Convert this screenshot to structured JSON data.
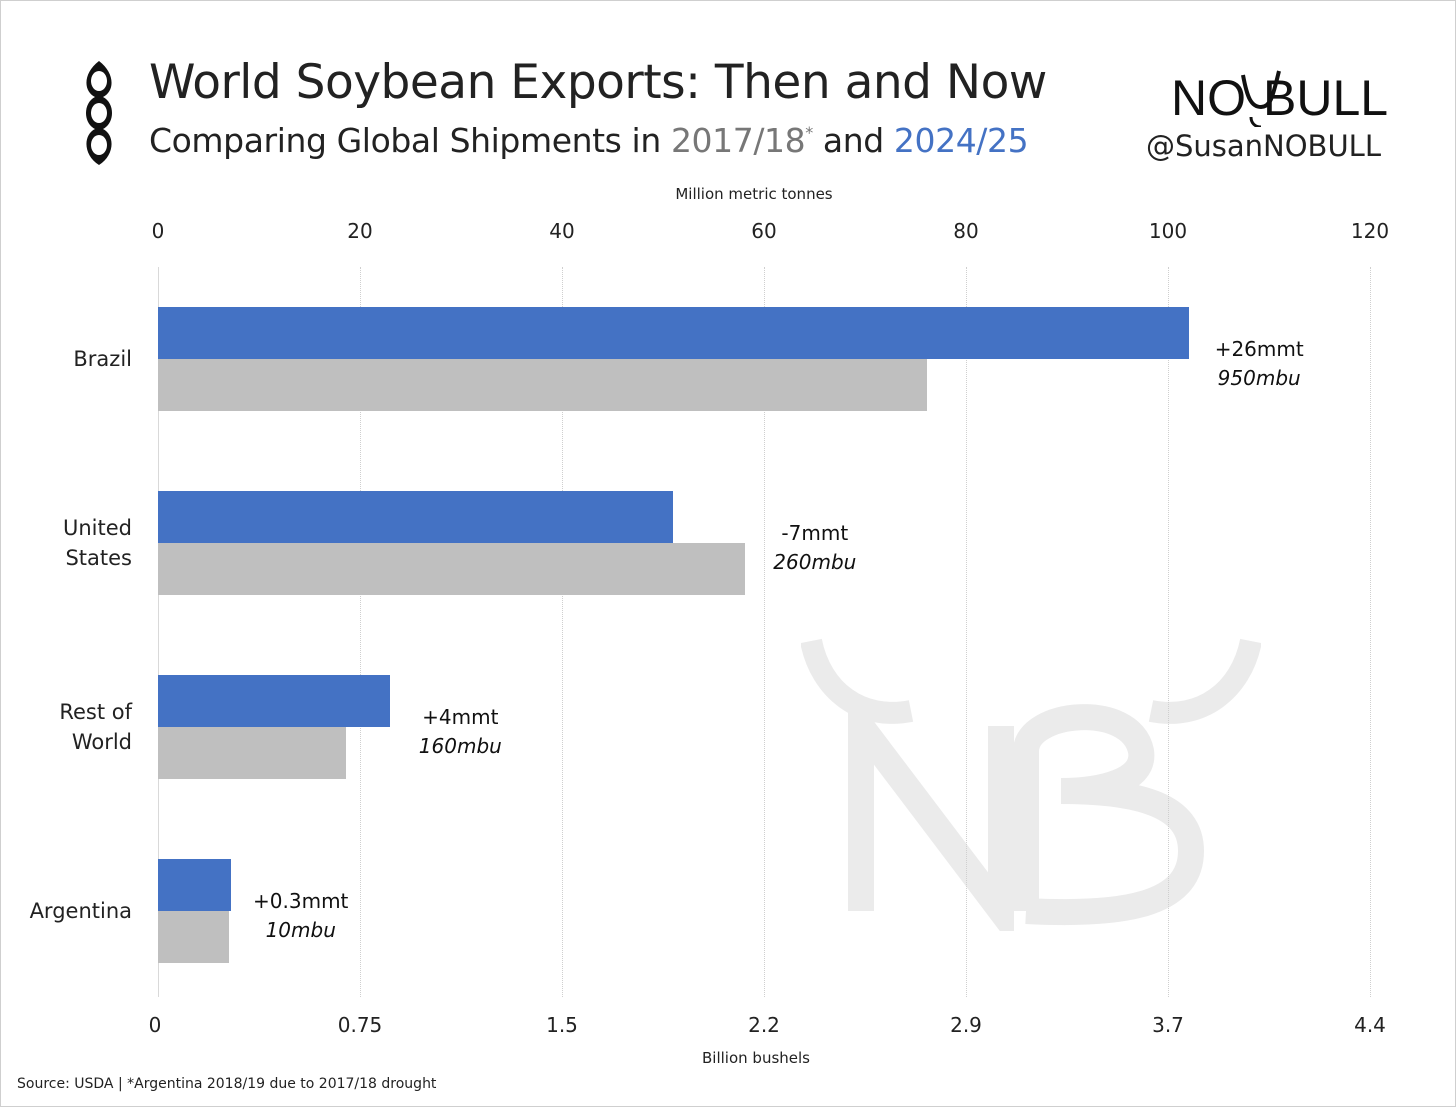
{
  "header": {
    "title": "World Soybean Exports: Then and Now",
    "subtitle_prefix": "Comparing Global Shipments in ",
    "period_then": "2017/18",
    "period_then_mark": "*",
    "subtitle_join": " and ",
    "period_now": "2024/25"
  },
  "brand": {
    "logo_text_left": "NO",
    "logo_text_right": "BULL",
    "handle": "@SusanNOBULL"
  },
  "colors": {
    "now": "#4472c4",
    "then": "#bfbfbf"
  },
  "chart_data": {
    "type": "bar",
    "orientation": "horizontal",
    "categories": [
      "Brazil",
      "United\nStates",
      "Rest of\nWorld",
      "Argentina"
    ],
    "series": [
      {
        "values": [
          102.1,
          51.0,
          23.0,
          7.2
        ],
        "color": "#4472c4"
      },
      {
        "values": [
          76.1,
          58.1,
          18.6,
          7.0
        ],
        "color": "#bfbfbf"
      }
    ],
    "annotations": [
      {
        "mmt": "+26mmt",
        "mbu": "950mbu"
      },
      {
        "mmt": "-7mmt",
        "mbu": "260mbu"
      },
      {
        "mmt": "+4mmt",
        "mbu": "160mbu"
      },
      {
        "mmt": "+0.3mmt",
        "mbu": "10mbu"
      }
    ],
    "x_top": {
      "label": "Million metric tonnes",
      "ticks": [
        "0",
        "20",
        "40",
        "60",
        "80",
        "100",
        "120"
      ],
      "range": [
        0,
        120
      ]
    },
    "x_bottom": {
      "label": "Billion bushels",
      "ticks": [
        "0",
        "0.75",
        "1.5",
        "2.2",
        "2.9",
        "3.7",
        "4.4"
      ]
    },
    "grid": "vertical dotted"
  },
  "footer": {
    "source": "Source: USDA | *Argentina 2018/19 due to  2017/18 drought"
  }
}
